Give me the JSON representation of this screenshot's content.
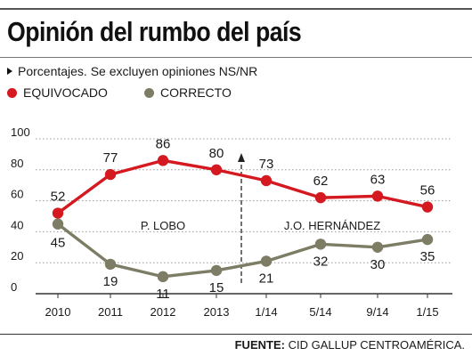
{
  "title": "Opinión del rumbo del país",
  "note": "Porcentajes. Se excluyen opiniones NS/NR",
  "source": {
    "label": "FUENTE:",
    "text": "CID GALLUP CENTROAMÉRICA."
  },
  "colors": {
    "equivocado": "#d41920",
    "correcto": "#7d7d66",
    "grid": "#9a9a9a",
    "text": "#1a1a1a"
  },
  "chart_data": {
    "type": "line",
    "categories": [
      "2010",
      "2011",
      "2012",
      "2013",
      "1/14",
      "5/14",
      "9/14",
      "1/15"
    ],
    "series": [
      {
        "name": "EQUIVOCADO",
        "values": [
          52,
          77,
          86,
          80,
          73,
          62,
          63,
          56
        ]
      },
      {
        "name": "CORRECTO",
        "values": [
          45,
          19,
          11,
          15,
          21,
          32,
          30,
          35
        ]
      }
    ],
    "yticks": [
      0,
      20,
      40,
      60,
      80,
      100
    ],
    "ylim": [
      0,
      100
    ],
    "grid": true,
    "legend_position": "top-left",
    "annotations": [
      {
        "text": "P. LOBO"
      },
      {
        "text": "J.O. HERNÁNDEZ"
      }
    ],
    "period_divider": {
      "between": [
        "2013",
        "1/14"
      ],
      "style": "dashed-arrow"
    }
  }
}
